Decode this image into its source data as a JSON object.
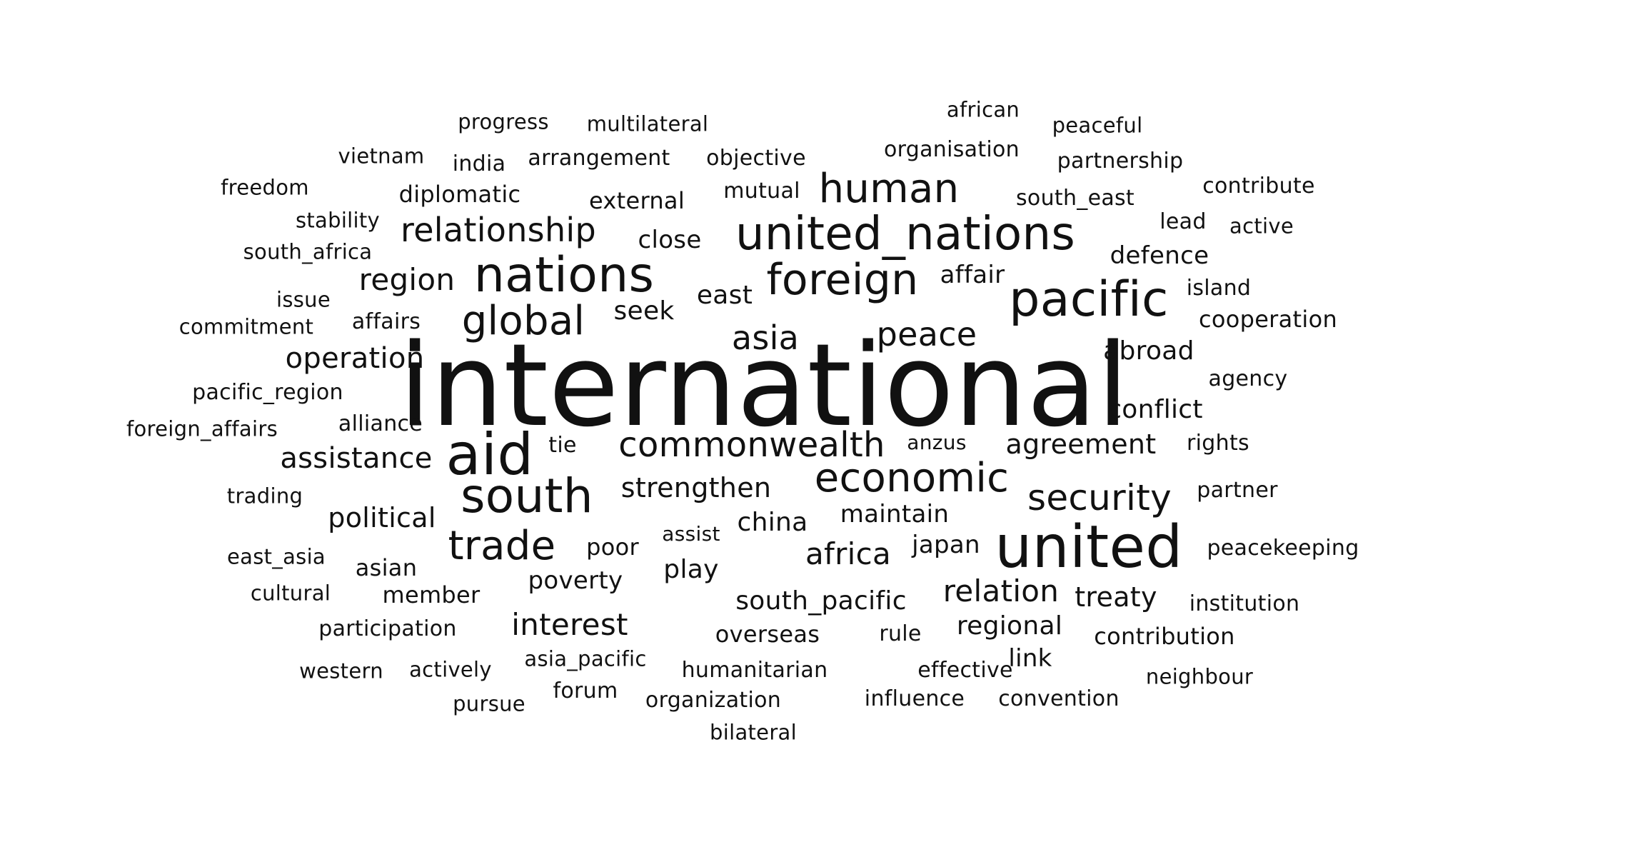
{
  "cloud": {
    "text_color": "#111111",
    "background": "#ffffff",
    "words": [
      {
        "text": "international",
        "weight": 100
      },
      {
        "text": "united",
        "weight": 58
      },
      {
        "text": "aid",
        "weight": 56
      },
      {
        "text": "nations",
        "weight": 50
      },
      {
        "text": "pacific",
        "weight": 50
      },
      {
        "text": "south",
        "weight": 50
      },
      {
        "text": "united_nations",
        "weight": 50
      },
      {
        "text": "foreign",
        "weight": 46
      },
      {
        "text": "global",
        "weight": 44
      },
      {
        "text": "trade",
        "weight": 44
      },
      {
        "text": "human",
        "weight": 44
      },
      {
        "text": "economic",
        "weight": 44
      },
      {
        "text": "security",
        "weight": 40
      },
      {
        "text": "relationship",
        "weight": 38
      },
      {
        "text": "commonwealth",
        "weight": 38
      },
      {
        "text": "peace",
        "weight": 37
      },
      {
        "text": "asia",
        "weight": 36
      },
      {
        "text": "region",
        "weight": 35
      },
      {
        "text": "assistance",
        "weight": 34
      },
      {
        "text": "operation",
        "weight": 34
      },
      {
        "text": "strengthen",
        "weight": 33
      },
      {
        "text": "relation",
        "weight": 35
      },
      {
        "text": "africa",
        "weight": 34
      },
      {
        "text": "interest",
        "weight": 33
      },
      {
        "text": "agreement",
        "weight": 32
      },
      {
        "text": "treaty",
        "weight": 32
      },
      {
        "text": "political",
        "weight": 31
      },
      {
        "text": "south_pacific",
        "weight": 30
      },
      {
        "text": "regional",
        "weight": 30
      },
      {
        "text": "china",
        "weight": 31
      },
      {
        "text": "maintain",
        "weight": 29
      },
      {
        "text": "conflict",
        "weight": 30
      },
      {
        "text": "abroad",
        "weight": 30
      },
      {
        "text": "defence",
        "weight": 29
      },
      {
        "text": "seek",
        "weight": 30
      },
      {
        "text": "east",
        "weight": 30
      },
      {
        "text": "play",
        "weight": 30
      },
      {
        "text": "poverty",
        "weight": 29
      },
      {
        "text": "close",
        "weight": 29
      },
      {
        "text": "affair",
        "weight": 28
      },
      {
        "text": "japan",
        "weight": 28
      },
      {
        "text": "link",
        "weight": 28
      },
      {
        "text": "poor",
        "weight": 27
      },
      {
        "text": "asian",
        "weight": 27
      },
      {
        "text": "diplomatic",
        "weight": 27
      },
      {
        "text": "member",
        "weight": 26
      },
      {
        "text": "overseas",
        "weight": 26
      },
      {
        "text": "contribution",
        "weight": 26
      },
      {
        "text": "cooperation",
        "weight": 26
      },
      {
        "text": "external",
        "weight": 26
      },
      {
        "text": "arrangement",
        "weight": 25
      },
      {
        "text": "alliance",
        "weight": 25
      },
      {
        "text": "mutual",
        "weight": 25
      },
      {
        "text": "objective",
        "weight": 25
      },
      {
        "text": "organisation",
        "weight": 25
      },
      {
        "text": "partnership",
        "weight": 25
      },
      {
        "text": "south_east",
        "weight": 25
      },
      {
        "text": "institution",
        "weight": 25
      },
      {
        "text": "humanitarian",
        "weight": 25
      },
      {
        "text": "organization",
        "weight": 25
      },
      {
        "text": "influence",
        "weight": 25
      },
      {
        "text": "convention",
        "weight": 25
      },
      {
        "text": "participation",
        "weight": 24
      },
      {
        "text": "india",
        "weight": 24
      },
      {
        "text": "affairs",
        "weight": 24
      },
      {
        "text": "contribute",
        "weight": 24
      },
      {
        "text": "pacific_region",
        "weight": 24
      },
      {
        "text": "peacekeeping",
        "weight": 24
      },
      {
        "text": "effective",
        "weight": 24
      },
      {
        "text": "rule",
        "weight": 24
      },
      {
        "text": "forum",
        "weight": 24
      },
      {
        "text": "tie",
        "weight": 24
      },
      {
        "text": "agency",
        "weight": 24
      },
      {
        "text": "partner",
        "weight": 24
      },
      {
        "text": "rights",
        "weight": 24
      },
      {
        "text": "island",
        "weight": 24
      },
      {
        "text": "lead",
        "weight": 24
      },
      {
        "text": "asia_pacific",
        "weight": 23
      },
      {
        "text": "foreign_affairs",
        "weight": 23
      },
      {
        "text": "vietnam",
        "weight": 23
      },
      {
        "text": "multilateral",
        "weight": 23
      },
      {
        "text": "progress",
        "weight": 23
      },
      {
        "text": "active",
        "weight": 23
      },
      {
        "text": "neighbour",
        "weight": 23
      },
      {
        "text": "commitment",
        "weight": 23
      },
      {
        "text": "stability",
        "weight": 23
      },
      {
        "text": "south_africa",
        "weight": 23
      },
      {
        "text": "peaceful",
        "weight": 23
      },
      {
        "text": "actively",
        "weight": 23
      },
      {
        "text": "bilateral",
        "weight": 23
      },
      {
        "text": "african",
        "weight": 23
      },
      {
        "text": "freedom",
        "weight": 22
      },
      {
        "text": "issue",
        "weight": 22
      },
      {
        "text": "trading",
        "weight": 22
      },
      {
        "text": "east_asia",
        "weight": 22
      },
      {
        "text": "cultural",
        "weight": 22
      },
      {
        "text": "western",
        "weight": 22
      },
      {
        "text": "pursue",
        "weight": 22
      },
      {
        "text": "assist",
        "weight": 21
      },
      {
        "text": "anzus",
        "weight": 21
      }
    ]
  }
}
